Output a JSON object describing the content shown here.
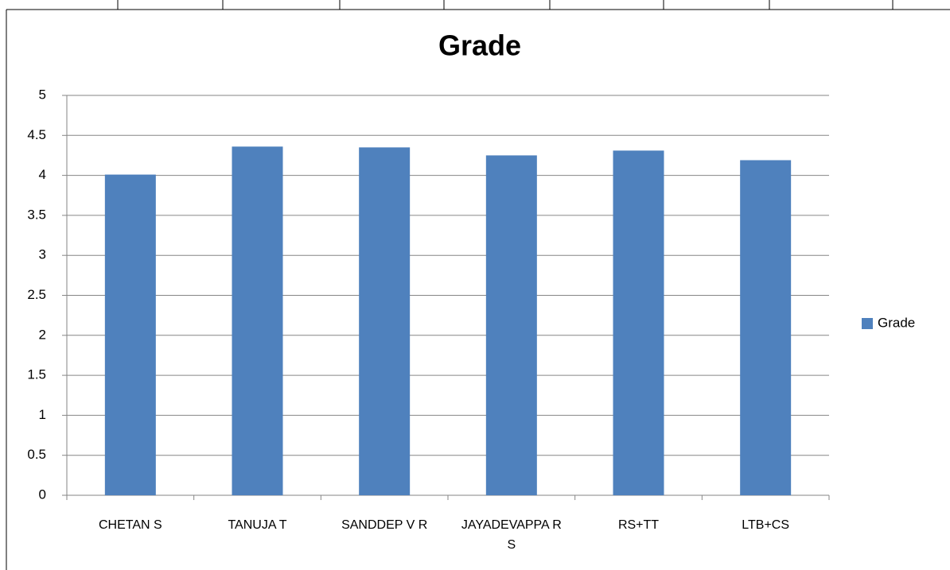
{
  "chart_data": {
    "type": "bar",
    "title": "Grade",
    "categories": [
      "CHETAN S",
      "TANUJA T",
      "SANDDEP V R",
      "JAYADEVAPPA R S",
      "RS+TT",
      "LTB+CS"
    ],
    "series": [
      {
        "name": "Grade",
        "color": "#4f81bd",
        "values": [
          4.01,
          4.36,
          4.35,
          4.25,
          4.31,
          4.19
        ]
      }
    ],
    "ylim": [
      0,
      5
    ],
    "yticks": [
      0,
      0.5,
      1,
      1.5,
      2,
      2.5,
      3,
      3.5,
      4,
      4.5,
      5
    ],
    "grid": true,
    "legend": "right"
  }
}
